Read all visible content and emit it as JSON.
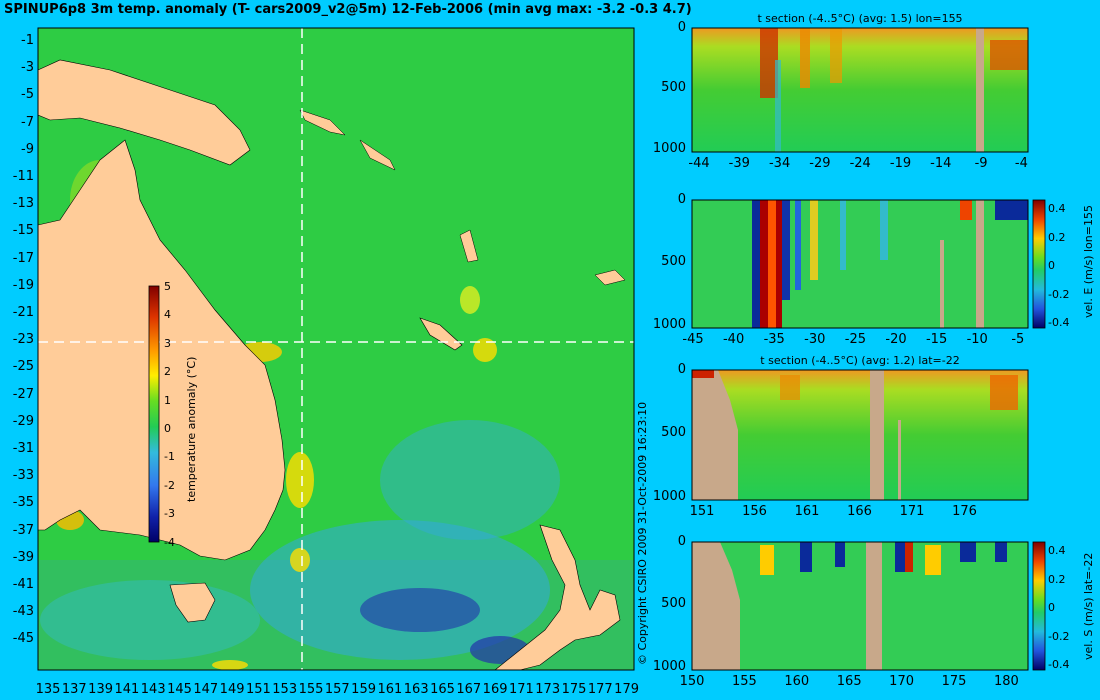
{
  "title": "SPINUP6p8 3m temp. anomaly (T- cars2009_v2@5m) 12-Feb-2006 (min avg max: -3.2 -0.3 4.7)",
  "copyright": "© Copyright CSIRO 2009  31-Oct-2009 16:23:10",
  "map": {
    "lat_labels": [
      "-1",
      "-3",
      "-5",
      "-7",
      "-9",
      "-11",
      "-13",
      "-15",
      "-17",
      "-19",
      "-21",
      "-23",
      "-25",
      "-27",
      "-29",
      "-31",
      "-33",
      "-35",
      "-37",
      "-39",
      "-41",
      "-43",
      "-45"
    ],
    "lon_labels": [
      "135",
      "137",
      "139",
      "141",
      "143",
      "145",
      "147",
      "149",
      "151",
      "153",
      "155",
      "157",
      "159",
      "161",
      "163",
      "165",
      "167",
      "169",
      "171",
      "173",
      "175",
      "177",
      "179"
    ],
    "section_lon": 155,
    "section_lat": -22,
    "colorbar": {
      "label": "temperature anomaly (°C)",
      "ticks": [
        "5",
        "4",
        "3",
        "2",
        "1",
        "0",
        "-1",
        "-2",
        "-3",
        "-4"
      ]
    },
    "colors": {
      "ocean": "#33cc33",
      "land": "#ffcc99",
      "background": "#00ccff"
    }
  },
  "panels": [
    {
      "title": "t section (-4..5°C) (avg: 1.5) lon=155",
      "depth_ticks": [
        "0",
        "500",
        "1000"
      ],
      "x_ticks": [
        "-44",
        "-39",
        "-34",
        "-29",
        "-24",
        "-19",
        "-14",
        "-9",
        "-4"
      ]
    },
    {
      "title": "",
      "depth_ticks": [
        "0",
        "500",
        "1000"
      ],
      "x_ticks": [
        "-45",
        "-40",
        "-35",
        "-30",
        "-25",
        "-20",
        "-15",
        "-10",
        "-5"
      ],
      "colorbar_label": "vel. E (m/s) lon=155",
      "colorbar_ticks": [
        "0.4",
        "0.2",
        "0",
        "-0.2",
        "-0.4"
      ]
    },
    {
      "title": "t section (-4..5°C) (avg: 1.2) lat=-22",
      "depth_ticks": [
        "0",
        "500",
        "1000"
      ],
      "x_ticks": [
        "151",
        "156",
        "161",
        "166",
        "171",
        "176"
      ]
    },
    {
      "title": "",
      "depth_ticks": [
        "0",
        "500",
        "1000"
      ],
      "x_ticks": [
        "150",
        "155",
        "160",
        "165",
        "170",
        "175",
        "180"
      ],
      "colorbar_label": "vel. S (m/s) lat=-22",
      "colorbar_ticks": [
        "0.4",
        "0.2",
        "0",
        "-0.2",
        "-0.4"
      ]
    }
  ]
}
